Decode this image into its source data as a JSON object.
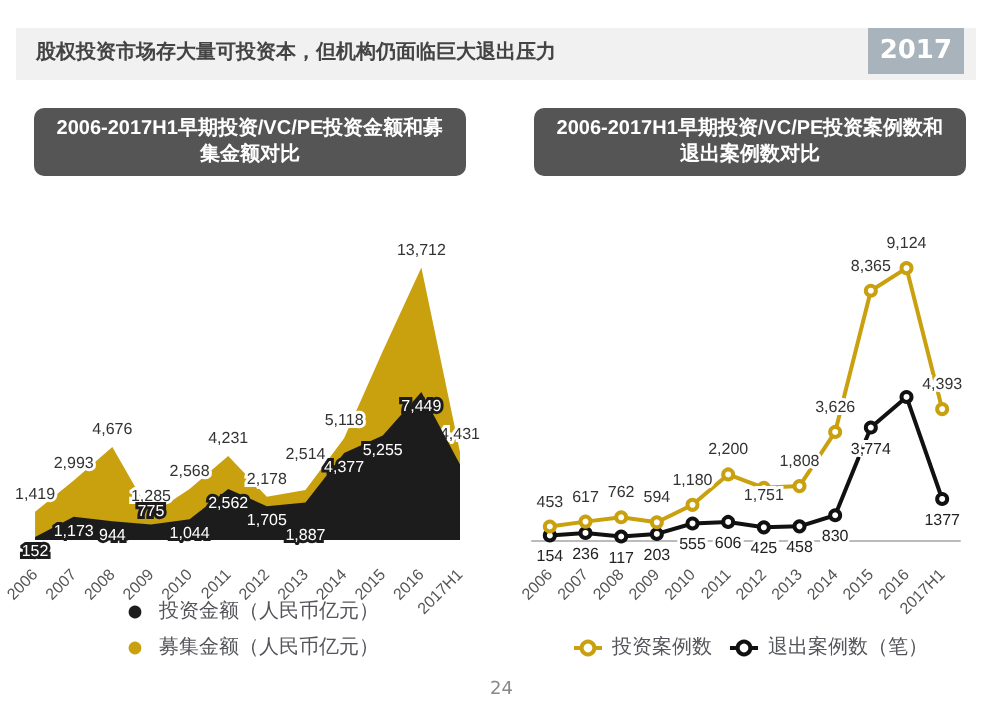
{
  "chart_data": [
    {
      "type": "area",
      "title": "2006-2017H1早期投资/VC/PE投资金额和募集金额对比",
      "annotations": [
        "股权投资市场存大量可投资本，但机构仍面临巨大退出压力",
        "2017",
        "24"
      ],
      "categories": [
        "2006",
        "2007",
        "2008",
        "2009",
        "2010",
        "2011",
        "2012",
        "2013",
        "2014",
        "2015",
        "2016",
        "2017H1"
      ],
      "legend": "bottom",
      "series": [
        {
          "name": "投资金额（人民币亿元）",
          "color": "#1c1c1c",
          "values": [
            152,
            1173,
            944,
            775,
            1044,
            2562,
            1705,
            1887,
            4377,
            5255,
            7449,
            3800
          ],
          "value_labels": [
            "152",
            "1,173",
            "944",
            "775",
            "1,044",
            "2,562",
            "1,705",
            "1,887",
            "4,377",
            "5,255",
            "7,449",
            null
          ]
        },
        {
          "name": "募集金额（人民币亿元）",
          "color": "#c9a00e",
          "values": [
            1419,
            2993,
            4676,
            1285,
            2568,
            4231,
            2178,
            2514,
            5118,
            9500,
            13712,
            4431
          ],
          "value_labels": [
            "1,419",
            "2,993",
            "4,676",
            "1,285",
            "2,568",
            "4,231",
            "2,178",
            "2,514",
            "5,118",
            null,
            "13,712",
            "4,431"
          ]
        }
      ]
    },
    {
      "type": "line",
      "title": "2006-2017H1早期投资/VC/PE投资案例数和退出案例数对比",
      "categories": [
        "2006",
        "2007",
        "2008",
        "2009",
        "2010",
        "2011",
        "2012",
        "2013",
        "2014",
        "2015",
        "2016",
        "2017H1"
      ],
      "legend": "bottom",
      "marker": "circle",
      "series": [
        {
          "name": "投资案例数",
          "color": "#c9a00e",
          "values": [
            453,
            617,
            762,
            594,
            1180,
            2200,
            1751,
            1808,
            3626,
            8365,
            9124,
            4393
          ],
          "value_labels": [
            "453",
            "617",
            "762",
            "594",
            "1,180",
            "2,200",
            "1,751",
            "1,808",
            "3,626",
            "8,365",
            "9,124",
            "4,393"
          ]
        },
        {
          "name": "退出案例数（笔）",
          "color": "#111111",
          "values": [
            154,
            236,
            117,
            203,
            555,
            606,
            425,
            458,
            830,
            3774,
            4800,
            1377
          ],
          "value_labels": [
            "154",
            "236",
            "117",
            "203",
            "555",
            "606",
            "425",
            "458",
            "830",
            "3,774",
            null,
            "1377"
          ]
        }
      ]
    }
  ]
}
